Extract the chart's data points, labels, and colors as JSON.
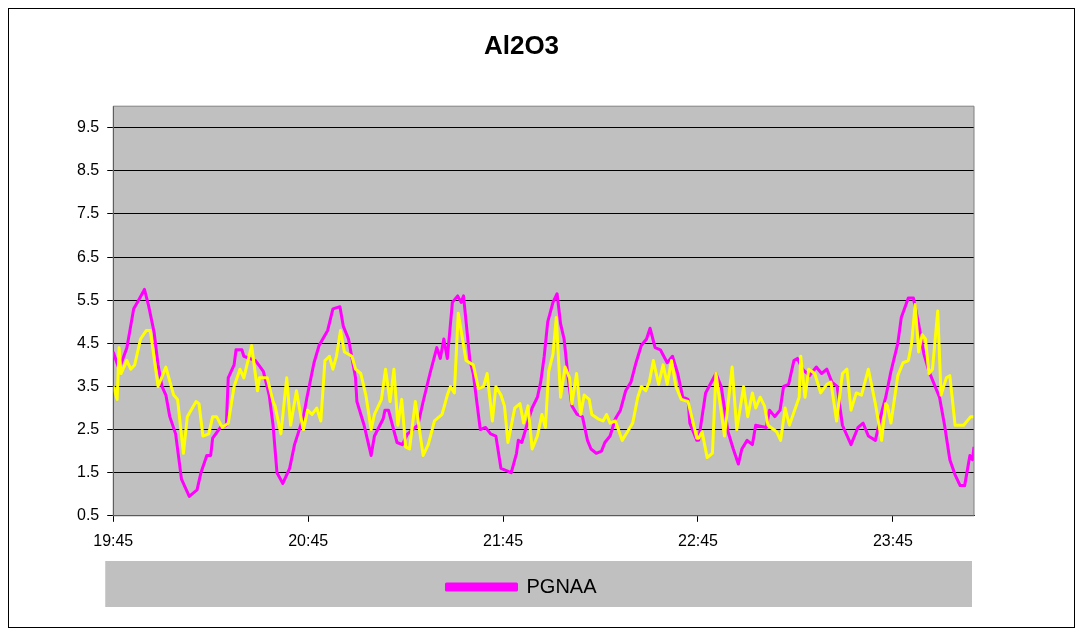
{
  "chart_data": {
    "type": "line",
    "title": "Al2O3",
    "xlim": [
      19.75,
      24.166
    ],
    "xticks": [
      {
        "value": 19.75,
        "label": "19:45"
      },
      {
        "value": 20.75,
        "label": "20:45"
      },
      {
        "value": 21.75,
        "label": "21:45"
      },
      {
        "value": 22.75,
        "label": "22:45"
      },
      {
        "value": 23.75,
        "label": "23:45"
      }
    ],
    "ylim": [
      0.5,
      10
    ],
    "yticks": [
      0.5,
      1.5,
      2.5,
      3.5,
      4.5,
      5.5,
      6.5,
      7.5,
      8.5,
      9.5
    ],
    "grid": "y",
    "legend": "bottom",
    "marker": "none",
    "line_style": "solid",
    "series": [
      {
        "color": "#ffff00",
        "x": [
          19.75,
          19.77,
          19.78,
          19.79,
          19.82,
          19.84,
          19.86,
          19.89,
          19.92,
          19.94,
          19.98,
          20.02,
          20.06,
          20.08,
          20.11,
          20.13,
          20.175,
          20.19,
          20.21,
          20.24,
          20.26,
          20.28,
          20.31,
          20.34,
          20.37,
          20.4,
          20.42,
          20.46,
          20.49,
          20.5,
          20.54,
          20.57,
          20.58,
          20.61,
          20.64,
          20.66,
          20.69,
          20.72,
          20.726,
          20.747,
          20.77,
          20.794,
          20.815,
          20.836,
          20.859,
          20.877,
          20.895,
          20.916,
          20.936,
          20.975,
          20.993,
          21.02,
          21.046,
          21.073,
          21.09,
          21.126,
          21.147,
          21.17,
          21.19,
          21.21,
          21.23,
          21.25,
          21.27,
          21.3,
          21.34,
          21.366,
          21.398,
          21.437,
          21.464,
          21.48,
          21.5,
          21.52,
          21.56,
          21.597,
          21.624,
          21.65,
          21.668,
          21.695,
          21.713,
          21.739,
          21.757,
          21.775,
          21.81,
          21.837,
          21.855,
          21.878,
          21.899,
          21.926,
          21.949,
          21.967,
          21.984,
          22.006,
          22.023,
          22.045,
          22.068,
          22.091,
          22.103,
          22.127,
          22.148,
          22.166,
          22.192,
          22.205,
          22.237,
          22.263,
          22.281,
          22.299,
          22.326,
          22.361,
          22.388,
          22.415,
          22.441,
          22.459,
          22.482,
          22.5,
          22.521,
          22.548,
          22.571,
          22.592,
          22.614,
          22.637,
          22.664,
          22.699,
          22.744,
          22.753,
          22.771,
          22.797,
          22.824,
          22.842,
          22.886,
          22.925,
          22.949,
          22.984,
          23.005,
          23.029,
          23.046,
          23.069,
          23.091,
          23.109,
          23.153,
          23.174,
          23.197,
          23.219,
          23.269,
          23.277,
          23.299,
          23.318,
          23.349,
          23.379,
          23.411,
          23.432,
          23.461,
          23.491,
          23.514,
          23.535,
          23.562,
          23.589,
          23.624,
          23.66,
          23.692,
          23.713,
          23.722,
          23.74,
          23.775,
          23.802,
          23.829,
          23.846,
          23.864,
          23.882,
          23.9,
          23.917,
          23.935,
          23.953,
          23.98,
          23.997,
          24.024,
          24.042,
          24.069,
          24.113,
          24.149,
          24.166
        ],
        "values": [
          3.5,
          3.2,
          4.4,
          3.8,
          4.1,
          3.9,
          4.0,
          4.6,
          4.8,
          4.8,
          3.5,
          3.95,
          3.3,
          3.2,
          1.95,
          2.8,
          3.15,
          3.1,
          2.35,
          2.4,
          2.8,
          2.8,
          2.55,
          2.65,
          3.5,
          3.9,
          3.7,
          4.45,
          3.4,
          3.7,
          3.7,
          3.15,
          3.05,
          2.4,
          3.7,
          2.6,
          3.4,
          2.6,
          2.5,
          2.95,
          2.85,
          3.0,
          2.7,
          4.1,
          4.2,
          3.9,
          4.2,
          4.8,
          4.3,
          4.2,
          3.9,
          3.8,
          3.3,
          2.5,
          2.85,
          3.2,
          3.9,
          3.15,
          3.9,
          2.6,
          3.2,
          2.1,
          2.05,
          3.15,
          1.9,
          2.15,
          2.7,
          2.85,
          3.3,
          3.5,
          3.35,
          5.2,
          4.1,
          4.0,
          3.45,
          3.5,
          3.8,
          2.7,
          3.5,
          3.3,
          3.05,
          2.2,
          3.0,
          3.1,
          2.65,
          3.05,
          2.05,
          2.35,
          2.85,
          2.55,
          3.85,
          4.25,
          5.1,
          3.25,
          3.95,
          3.7,
          3.1,
          3.8,
          2.85,
          3.3,
          3.2,
          2.85,
          2.75,
          2.7,
          2.85,
          2.65,
          2.7,
          2.25,
          2.45,
          2.65,
          3.25,
          3.5,
          3.4,
          3.6,
          4.1,
          3.55,
          4.0,
          3.55,
          4.1,
          3.5,
          3.2,
          3.15,
          2.3,
          2.3,
          2.45,
          1.85,
          1.95,
          3.8,
          2.35,
          3.95,
          2.5,
          3.5,
          2.8,
          3.35,
          3.0,
          3.25,
          3.05,
          2.6,
          2.45,
          2.25,
          3.0,
          2.6,
          3.25,
          4.2,
          3.25,
          3.9,
          3.8,
          3.35,
          3.55,
          3.6,
          2.7,
          3.8,
          3.9,
          2.95,
          3.35,
          3.3,
          3.9,
          3.1,
          2.25,
          3.1,
          3.05,
          2.65,
          3.75,
          4.05,
          4.1,
          4.5,
          5.4,
          4.3,
          4.7,
          4.6,
          3.8,
          3.9,
          5.25,
          3.3,
          3.7,
          3.75,
          2.6,
          2.6,
          2.8,
          2.8
        ]
      },
      {
        "name": "PGNAA",
        "color": "#ff00ff",
        "x": [
          19.75,
          19.78,
          19.82,
          19.855,
          19.88,
          19.91,
          19.93,
          19.96,
          19.98,
          20.0,
          20.02,
          20.04,
          20.07,
          20.1,
          20.14,
          20.18,
          20.2,
          20.23,
          20.25,
          20.26,
          20.3,
          20.33,
          20.34,
          20.37,
          20.38,
          20.41,
          20.42,
          20.48,
          20.52,
          20.55,
          20.57,
          20.59,
          20.62,
          20.655,
          20.68,
          20.726,
          20.744,
          20.78,
          20.806,
          20.85,
          20.877,
          20.913,
          20.93,
          20.957,
          20.993,
          21.0,
          21.037,
          21.073,
          21.09,
          21.135,
          21.144,
          21.162,
          21.206,
          21.233,
          21.26,
          21.313,
          21.34,
          21.375,
          21.41,
          21.428,
          21.446,
          21.464,
          21.49,
          21.517,
          21.535,
          21.547,
          21.58,
          21.597,
          21.633,
          21.66,
          21.686,
          21.713,
          21.739,
          21.792,
          21.819,
          21.828,
          21.846,
          21.872,
          21.899,
          21.926,
          21.943,
          21.961,
          21.979,
          22.006,
          22.027,
          22.045,
          22.063,
          22.086,
          22.103,
          22.13,
          22.157,
          22.183,
          22.201,
          22.228,
          22.255,
          22.272,
          22.299,
          22.326,
          22.352,
          22.379,
          22.406,
          22.432,
          22.459,
          22.486,
          22.504,
          22.53,
          22.557,
          22.592,
          22.619,
          22.646,
          22.672,
          22.699,
          22.708,
          22.744,
          22.753,
          22.789,
          22.842,
          22.869,
          22.904,
          22.931,
          22.957,
          22.975,
          23.002,
          23.029,
          23.046,
          23.1,
          23.117,
          23.144,
          23.171,
          23.189,
          23.215,
          23.242,
          23.26,
          23.286,
          23.322,
          23.357,
          23.384,
          23.411,
          23.437,
          23.464,
          23.491,
          23.535,
          23.571,
          23.597,
          23.624,
          23.66,
          23.695,
          23.713,
          23.74,
          23.775,
          23.793,
          23.829,
          23.855,
          23.882,
          23.909,
          23.935,
          23.989,
          24.015,
          24.042,
          24.069,
          24.095,
          24.118,
          24.145,
          24.158,
          24.166
        ],
        "values": [
          4.3,
          3.9,
          4.4,
          5.3,
          5.5,
          5.75,
          5.4,
          4.75,
          4.0,
          3.5,
          3.3,
          2.8,
          2.4,
          1.35,
          0.95,
          1.1,
          1.5,
          1.9,
          1.9,
          2.3,
          2.55,
          2.6,
          3.7,
          4.0,
          4.35,
          4.35,
          4.2,
          4.1,
          3.85,
          3.3,
          2.6,
          1.5,
          1.25,
          1.6,
          2.15,
          2.8,
          3.25,
          4.05,
          4.45,
          4.8,
          5.3,
          5.35,
          4.9,
          4.6,
          3.7,
          3.15,
          2.6,
          1.9,
          2.35,
          2.75,
          2.95,
          2.95,
          2.2,
          2.15,
          2.4,
          2.6,
          3.15,
          3.8,
          4.4,
          4.15,
          4.6,
          4.15,
          5.45,
          5.6,
          5.45,
          5.6,
          4.1,
          3.8,
          2.5,
          2.55,
          2.4,
          2.35,
          1.6,
          1.5,
          1.95,
          2.25,
          2.2,
          2.6,
          3.0,
          3.25,
          3.6,
          4.2,
          5.0,
          5.45,
          5.65,
          4.95,
          4.6,
          3.6,
          3.05,
          2.85,
          2.8,
          2.25,
          2.05,
          1.95,
          2.0,
          2.2,
          2.35,
          2.75,
          2.95,
          3.4,
          3.6,
          4.05,
          4.45,
          4.6,
          4.85,
          4.4,
          4.35,
          4.05,
          4.2,
          3.8,
          3.25,
          3.2,
          2.65,
          2.25,
          2.25,
          3.35,
          3.8,
          3.5,
          2.45,
          2.05,
          1.7,
          2.05,
          2.25,
          2.15,
          2.6,
          2.55,
          2.95,
          2.8,
          2.95,
          3.5,
          3.55,
          4.1,
          4.15,
          3.9,
          3.75,
          3.95,
          3.8,
          3.9,
          3.6,
          3.5,
          2.6,
          2.15,
          2.55,
          2.65,
          2.35,
          2.25,
          2.95,
          3.25,
          3.85,
          4.5,
          5.1,
          5.55,
          5.55,
          4.95,
          4.25,
          3.85,
          3.25,
          2.6,
          1.8,
          1.45,
          1.2,
          1.2,
          1.9,
          1.8,
          2.1
        ]
      }
    ]
  }
}
